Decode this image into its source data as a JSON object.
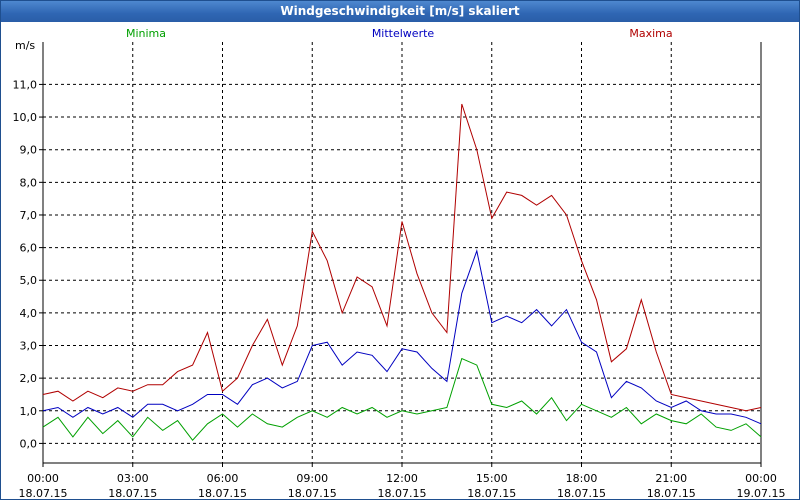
{
  "window": {
    "title": "Windgeschwindigkeit [m/s] skaliert"
  },
  "chart_data": {
    "type": "line",
    "title": "Windgeschwindigkeit [m/s] skaliert",
    "ylabel": "m/s",
    "xlabel": "",
    "ylim": [
      -0.6,
      12.3
    ],
    "yticks": [
      "0,0",
      "1,0",
      "2,0",
      "3,0",
      "4,0",
      "5,0",
      "6,0",
      "7,0",
      "8,0",
      "9,0",
      "10,0",
      "11,0"
    ],
    "ytick_values": [
      0,
      1,
      2,
      3,
      4,
      5,
      6,
      7,
      8,
      9,
      10,
      11
    ],
    "xlim_hours": [
      0,
      24
    ],
    "xticks": [
      {
        "time": "00:00",
        "date": "18.07.15"
      },
      {
        "time": "03:00",
        "date": "18.07.15"
      },
      {
        "time": "06:00",
        "date": "18.07.15"
      },
      {
        "time": "09:00",
        "date": "18.07.15"
      },
      {
        "time": "12:00",
        "date": "18.07.15"
      },
      {
        "time": "15:00",
        "date": "18.07.15"
      },
      {
        "time": "18:00",
        "date": "18.07.15"
      },
      {
        "time": "21:00",
        "date": "18.07.15"
      },
      {
        "time": "00:00",
        "date": "19.07.15"
      }
    ],
    "grid": true,
    "legend_position": "top",
    "series": [
      {
        "name": "Minima",
        "color": "#00a000",
        "points": [
          [
            0,
            0.5
          ],
          [
            0.5,
            0.8
          ],
          [
            1,
            0.2
          ],
          [
            1.5,
            0.8
          ],
          [
            2,
            0.3
          ],
          [
            2.5,
            0.7
          ],
          [
            3,
            0.2
          ],
          [
            3.5,
            0.8
          ],
          [
            4,
            0.4
          ],
          [
            4.5,
            0.7
          ],
          [
            5,
            0.1
          ],
          [
            5.5,
            0.6
          ],
          [
            6,
            0.9
          ],
          [
            6.5,
            0.5
          ],
          [
            7,
            0.9
          ],
          [
            7.5,
            0.6
          ],
          [
            8,
            0.5
          ],
          [
            8.5,
            0.8
          ],
          [
            9,
            1.0
          ],
          [
            9.5,
            0.8
          ],
          [
            10,
            1.1
          ],
          [
            10.5,
            0.9
          ],
          [
            11,
            1.1
          ],
          [
            11.5,
            0.8
          ],
          [
            12,
            1.0
          ],
          [
            12.5,
            0.9
          ],
          [
            13,
            1.0
          ],
          [
            13.5,
            1.1
          ],
          [
            14,
            2.6
          ],
          [
            14.5,
            2.4
          ],
          [
            15,
            1.2
          ],
          [
            15.5,
            1.1
          ],
          [
            16,
            1.3
          ],
          [
            16.5,
            0.9
          ],
          [
            17,
            1.4
          ],
          [
            17.5,
            0.7
          ],
          [
            18,
            1.2
          ],
          [
            18.5,
            1.0
          ],
          [
            19,
            0.8
          ],
          [
            19.5,
            1.1
          ],
          [
            20,
            0.6
          ],
          [
            20.5,
            0.9
          ],
          [
            21,
            0.7
          ],
          [
            21.5,
            0.6
          ],
          [
            22,
            0.9
          ],
          [
            22.5,
            0.5
          ],
          [
            23,
            0.4
          ],
          [
            23.5,
            0.6
          ],
          [
            24,
            0.2
          ]
        ]
      },
      {
        "name": "Mittelwerte",
        "color": "#0000c0",
        "points": [
          [
            0,
            1.0
          ],
          [
            0.5,
            1.1
          ],
          [
            1,
            0.8
          ],
          [
            1.5,
            1.1
          ],
          [
            2,
            0.9
          ],
          [
            2.5,
            1.1
          ],
          [
            3,
            0.8
          ],
          [
            3.5,
            1.2
          ],
          [
            4,
            1.2
          ],
          [
            4.5,
            1.0
          ],
          [
            5,
            1.2
          ],
          [
            5.5,
            1.5
          ],
          [
            6,
            1.5
          ],
          [
            6.5,
            1.2
          ],
          [
            7,
            1.8
          ],
          [
            7.5,
            2.0
          ],
          [
            8,
            1.7
          ],
          [
            8.5,
            1.9
          ],
          [
            9,
            3.0
          ],
          [
            9.5,
            3.1
          ],
          [
            10,
            2.4
          ],
          [
            10.5,
            2.8
          ],
          [
            11,
            2.7
          ],
          [
            11.5,
            2.2
          ],
          [
            12,
            2.9
          ],
          [
            12.5,
            2.8
          ],
          [
            13,
            2.3
          ],
          [
            13.5,
            1.9
          ],
          [
            14,
            4.6
          ],
          [
            14.5,
            5.9
          ],
          [
            15,
            3.7
          ],
          [
            15.5,
            3.9
          ],
          [
            16,
            3.7
          ],
          [
            16.5,
            4.1
          ],
          [
            17,
            3.6
          ],
          [
            17.5,
            4.1
          ],
          [
            18,
            3.1
          ],
          [
            18.5,
            2.8
          ],
          [
            19,
            1.4
          ],
          [
            19.5,
            1.9
          ],
          [
            20,
            1.7
          ],
          [
            20.5,
            1.3
          ],
          [
            21,
            1.1
          ],
          [
            21.5,
            1.3
          ],
          [
            22,
            1.0
          ],
          [
            22.5,
            0.9
          ],
          [
            23,
            0.9
          ],
          [
            23.5,
            0.8
          ],
          [
            24,
            0.6
          ]
        ]
      },
      {
        "name": "Maxima",
        "color": "#b00000",
        "points": [
          [
            0,
            1.5
          ],
          [
            0.5,
            1.6
          ],
          [
            1,
            1.3
          ],
          [
            1.5,
            1.6
          ],
          [
            2,
            1.4
          ],
          [
            2.5,
            1.7
          ],
          [
            3,
            1.6
          ],
          [
            3.5,
            1.8
          ],
          [
            4,
            1.8
          ],
          [
            4.5,
            2.2
          ],
          [
            5,
            2.4
          ],
          [
            5.5,
            3.4
          ],
          [
            6,
            1.6
          ],
          [
            6.5,
            2.0
          ],
          [
            7,
            3.0
          ],
          [
            7.5,
            3.8
          ],
          [
            8,
            2.4
          ],
          [
            8.5,
            3.6
          ],
          [
            9,
            6.5
          ],
          [
            9.5,
            5.6
          ],
          [
            10,
            4.0
          ],
          [
            10.5,
            5.1
          ],
          [
            11,
            4.8
          ],
          [
            11.5,
            3.6
          ],
          [
            12,
            6.8
          ],
          [
            12.5,
            5.2
          ],
          [
            13,
            4.0
          ],
          [
            13.5,
            3.4
          ],
          [
            14,
            10.4
          ],
          [
            14.5,
            9.0
          ],
          [
            15,
            6.9
          ],
          [
            15.5,
            7.7
          ],
          [
            16,
            7.6
          ],
          [
            16.5,
            7.3
          ],
          [
            17,
            7.6
          ],
          [
            17.5,
            7.0
          ],
          [
            18,
            5.6
          ],
          [
            18.5,
            4.4
          ],
          [
            19,
            2.5
          ],
          [
            19.5,
            2.9
          ],
          [
            20,
            4.4
          ],
          [
            20.5,
            2.8
          ],
          [
            21,
            1.5
          ],
          [
            21.5,
            1.4
          ],
          [
            22,
            1.3
          ],
          [
            22.5,
            1.2
          ],
          [
            23,
            1.1
          ],
          [
            23.5,
            1.0
          ],
          [
            24,
            1.1
          ]
        ]
      }
    ]
  }
}
